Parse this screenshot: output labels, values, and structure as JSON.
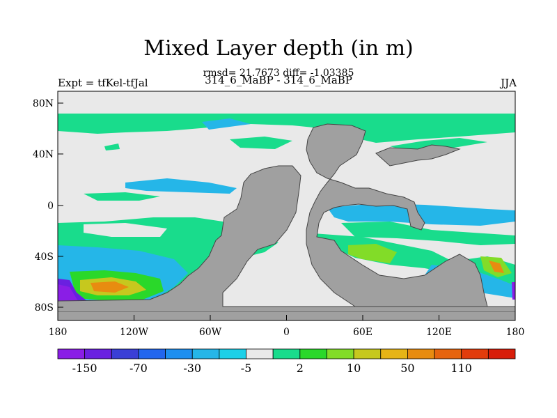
{
  "title": "Mixed Layer depth (in m)",
  "subtitle_stats": "rmsd= 21.7673 diff= -1.03385",
  "subtitle_run": "314_6_MaBP - 314_6_MaBP",
  "left_label": "Expt = tfKel-tfJal",
  "right_label": "JJA",
  "lat_ticks": [
    "80N",
    "40N",
    "0",
    "40S",
    "80S"
  ],
  "lon_ticks": [
    "180",
    "120W",
    "60W",
    "0",
    "60E",
    "120E",
    "180"
  ],
  "colorbar": {
    "colors": [
      "#8a1ee6",
      "#6a20e0",
      "#3a3fd6",
      "#2266ee",
      "#1e8ff0",
      "#25b6e8",
      "#1cd0e8",
      "#e9e9e9",
      "#19dc8c",
      "#2ad82a",
      "#82dc28",
      "#c6c81e",
      "#e6b416",
      "#e88c10",
      "#e6640e",
      "#e23c0c",
      "#d81e0a"
    ],
    "labels": [
      "-150",
      "-70",
      "-30",
      "-5",
      "2",
      "10",
      "50",
      "110"
    ]
  },
  "colors": {
    "land": "#a0a0a0",
    "ocean_zero": "#e9e9e9"
  }
}
